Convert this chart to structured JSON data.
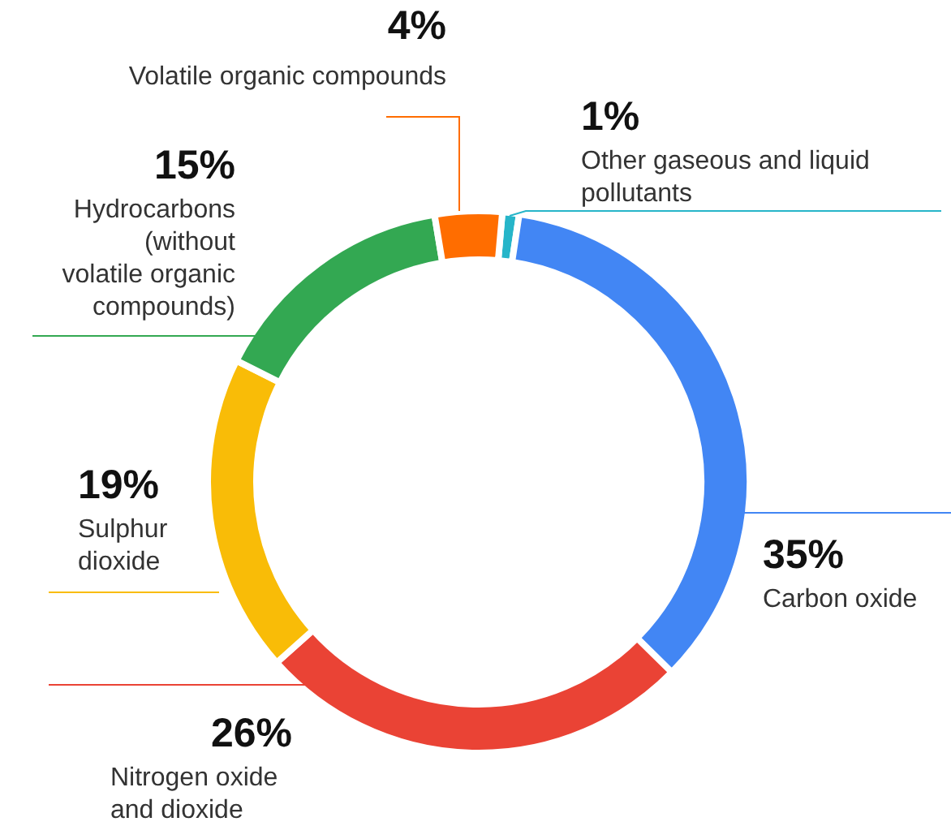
{
  "chart_data": {
    "type": "donut",
    "categories": [
      "Other gaseous and liquid pollutants",
      "Carbon oxide",
      "Nitrogen oxide and dioxide",
      "Sulphur dioxide",
      "Hydrocarbons (without volatile organic compounds)",
      "Volatile organic compounds"
    ],
    "values": [
      1,
      35,
      26,
      19,
      15,
      4
    ],
    "value_labels": [
      "1%",
      "35%",
      "26%",
      "19%",
      "15%",
      "4%"
    ],
    "colors": [
      "#26b5c9",
      "#4286f4",
      "#ea4335",
      "#f9bc07",
      "#33a852",
      "#ff6d00"
    ]
  }
}
